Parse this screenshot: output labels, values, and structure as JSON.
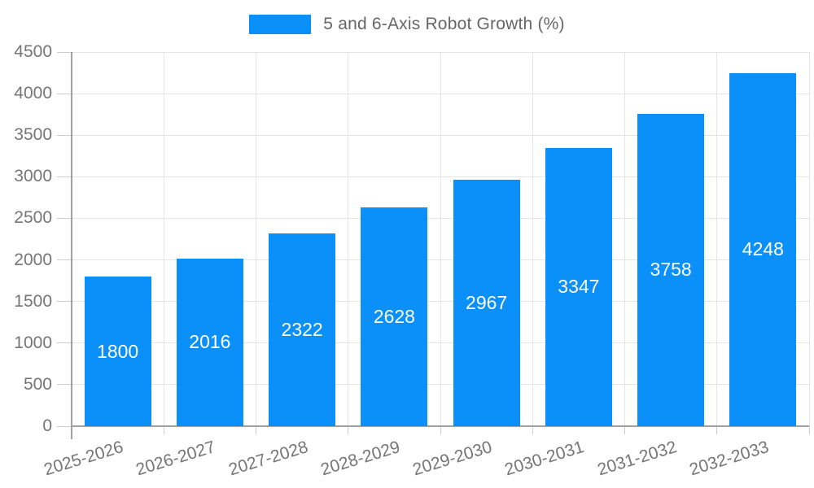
{
  "legend": {
    "label": "5 and 6-Axis Robot Growth (%)"
  },
  "colors": {
    "bar": "#0a90f8",
    "grid": "#e4e4e4",
    "axis": "#a0a0a0",
    "tick": "#cccccc",
    "axis_text": "#757575",
    "legend_text": "#666666",
    "bar_label": "#ffffff",
    "background": "#ffffff"
  },
  "chart_data": {
    "type": "bar",
    "title": "5 and 6-Axis Robot Growth (%)",
    "categories": [
      "2025-2026",
      "2026-2027",
      "2027-2028",
      "2028-2029",
      "2029-2030",
      "2030-2031",
      "2031-2032",
      "2032-2033"
    ],
    "values": [
      1800,
      2016,
      2322,
      2628,
      2967,
      3347,
      3758,
      4248
    ],
    "xlabel": "",
    "ylabel": "",
    "ylim": [
      0,
      4500
    ],
    "ytick_step": 500,
    "ytick_labels": [
      "0",
      "500",
      "1000",
      "1500",
      "2000",
      "2500",
      "3000",
      "3500",
      "4000",
      "4500"
    ],
    "grid": true,
    "legend_position": "top",
    "bar_value_labels_inside": true,
    "x_label_rotation_deg": -17
  }
}
